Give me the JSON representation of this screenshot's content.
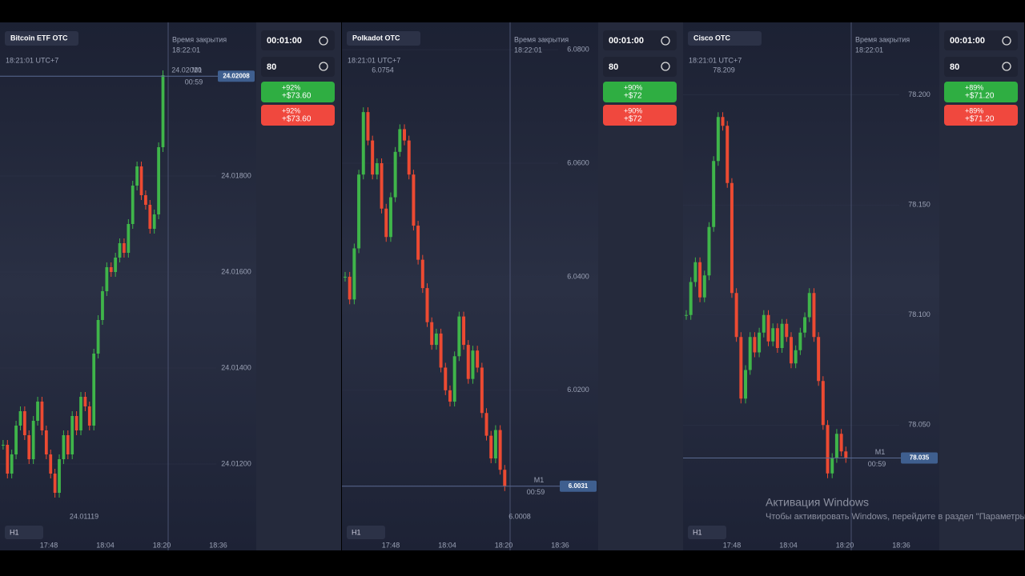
{
  "panels": [
    {
      "asset": "Bitcoin ETF OTC",
      "time": "18:21:01 UTC+7",
      "close_label": "Время закрытия",
      "close_time": "18:22:01",
      "timer": "00:01:00",
      "amount": "80",
      "up": {
        "pct": "+92%",
        "payout": "+$73.60"
      },
      "down": {
        "pct": "+92%",
        "payout": "+$73.60"
      },
      "timeframe": "H1",
      "m1": "M1",
      "countdown": "00:59",
      "high_label": "24.02010",
      "low_label": "24.01119",
      "current_price": {
        "value": 24.02008,
        "label": "24.02008"
      },
      "ylim": [
        24.0102,
        24.0212
      ],
      "yticks": [
        {
          "value": 24.012,
          "label": "24.01200"
        },
        {
          "value": 24.014,
          "label": "24.01400"
        },
        {
          "value": 24.016,
          "label": "24.01600"
        },
        {
          "value": 24.018,
          "label": "24.01800"
        }
      ],
      "xticks": [
        "17:48",
        "18:04",
        "18:20",
        "18:36"
      ],
      "prices": [
        24.0124,
        24.0118,
        24.0122,
        24.0128,
        24.0131,
        24.0126,
        24.0121,
        24.0129,
        24.0133,
        24.0127,
        24.0122,
        24.0118,
        24.0114,
        24.0121,
        24.0126,
        24.0122,
        24.013,
        24.0127,
        24.0134,
        24.0132,
        24.0128,
        24.0143,
        24.015,
        24.0156,
        24.0161,
        24.016,
        24.0163,
        24.0166,
        24.0164,
        24.017,
        24.0178,
        24.0182,
        24.0176,
        24.0174,
        24.0169,
        24.0172,
        24.0186,
        24.0201
      ]
    },
    {
      "asset": "Polkadot OTC",
      "time": "18:21:01 UTC+7",
      "close_label": "Время закрытия",
      "close_time": "18:22:01",
      "timer": "00:01:00",
      "amount": "80",
      "up": {
        "pct": "+90%",
        "payout": "+$72"
      },
      "down": {
        "pct": "+90%",
        "payout": "+$72"
      },
      "timeframe": "H1",
      "m1": "M1",
      "countdown": "00:59",
      "high_label": "6.0754",
      "low_label": "6.0008",
      "current_price": {
        "value": 6.0031,
        "label": "6.0031"
      },
      "ylim": [
        5.9918,
        6.0848
      ],
      "yticks": [
        {
          "value": 6.02,
          "label": "6.0200"
        },
        {
          "value": 6.04,
          "label": "6.0400"
        },
        {
          "value": 6.06,
          "label": "6.0600"
        },
        {
          "value": 6.08,
          "label": "6.0800"
        }
      ],
      "xticks": [
        "17:48",
        "18:04",
        "18:20",
        "18:36"
      ],
      "prices": [
        6.04,
        6.036,
        6.045,
        6.058,
        6.069,
        6.064,
        6.058,
        6.06,
        6.052,
        6.047,
        6.054,
        6.062,
        6.066,
        6.064,
        6.058,
        6.049,
        6.043,
        6.038,
        6.032,
        6.028,
        6.03,
        6.024,
        6.02,
        6.018,
        6.026,
        6.033,
        6.028,
        6.022,
        6.027,
        6.024,
        6.016,
        6.012,
        6.008,
        6.013,
        6.006,
        6.0031
      ]
    },
    {
      "asset": "Cisco OTC",
      "time": "18:21:01 UTC+7",
      "close_label": "Время закрытия",
      "close_time": "18:22:01",
      "timer": "00:01:00",
      "amount": "80",
      "up": {
        "pct": "+89%",
        "payout": "+$71.20"
      },
      "down": {
        "pct": "+89%",
        "payout": "+$71.20"
      },
      "timeframe": "H1",
      "m1": "M1",
      "countdown": "00:59",
      "high_label": "78.209",
      "current_price": {
        "value": 78.035,
        "label": "78.035"
      },
      "ylim": [
        77.993,
        78.233
      ],
      "yticks": [
        {
          "value": 78.05,
          "label": "78.050"
        },
        {
          "value": 78.1,
          "label": "78.100"
        },
        {
          "value": 78.15,
          "label": "78.150"
        },
        {
          "value": 78.2,
          "label": "78.200"
        }
      ],
      "xticks": [
        "17:48",
        "18:04",
        "18:20",
        "18:36"
      ],
      "prices": [
        78.1,
        78.115,
        78.124,
        78.108,
        78.118,
        78.14,
        78.17,
        78.19,
        78.186,
        78.16,
        78.11,
        78.09,
        78.062,
        78.075,
        78.09,
        78.083,
        78.092,
        78.1,
        78.088,
        78.094,
        78.085,
        78.096,
        78.09,
        78.078,
        78.084,
        78.092,
        78.099,
        78.11,
        78.09,
        78.07,
        78.05,
        78.028,
        78.035,
        78.046,
        78.038,
        78.035
      ]
    }
  ],
  "watermark": {
    "title": "Активация Windows",
    "text": "Чтобы активировать Windows, перейдите в раздел \"Параметры\""
  }
}
